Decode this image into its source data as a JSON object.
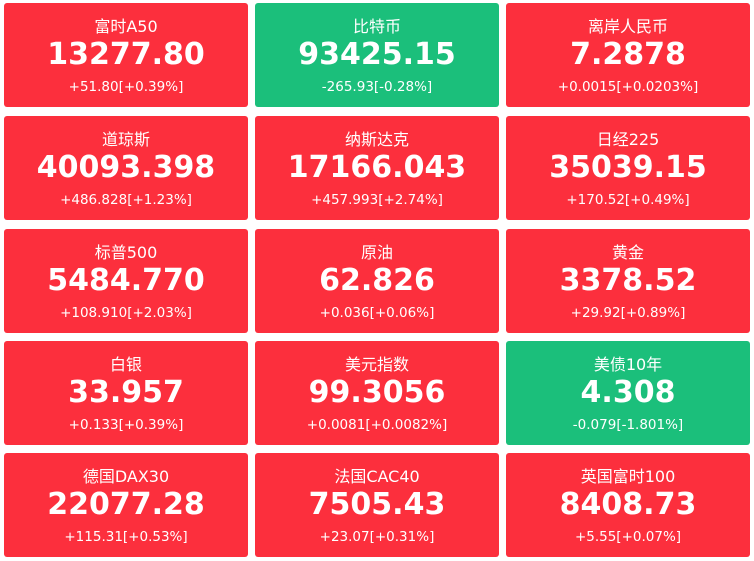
{
  "tiles": [
    {
      "name": "富时A50",
      "value": "13277.80",
      "change": "+51.80[+0.39%]",
      "color": "#fc2f3d"
    },
    {
      "name": "比特币",
      "value": "93425.15",
      "change": "-265.93[-0.28%]",
      "color": "#1bbf7b"
    },
    {
      "name": "离岸人民币",
      "value": "7.2878",
      "change": "+0.0015[+0.0203%]",
      "color": "#fc2f3d"
    },
    {
      "name": "道琼斯",
      "value": "40093.398",
      "change": "+486.828[+1.23%]",
      "color": "#fc2f3d"
    },
    {
      "name": "纳斯达克",
      "value": "17166.043",
      "change": "+457.993[+2.74%]",
      "color": "#fc2f3d"
    },
    {
      "name": "日经225",
      "value": "35039.15",
      "change": "+170.52[+0.49%]",
      "color": "#fc2f3d"
    },
    {
      "name": "标普500",
      "value": "5484.770",
      "change": "+108.910[+2.03%]",
      "color": "#fc2f3d"
    },
    {
      "name": "原油",
      "value": "62.826",
      "change": "+0.036[+0.06%]",
      "color": "#fc2f3d"
    },
    {
      "name": "黄金",
      "value": "3378.52",
      "change": "+29.92[+0.89%]",
      "color": "#fc2f3d"
    },
    {
      "name": "白银",
      "value": "33.957",
      "change": "+0.133[+0.39%]",
      "color": "#fc2f3d"
    },
    {
      "name": "美元指数",
      "value": "99.3056",
      "change": "+0.0081[+0.0082%]",
      "color": "#fc2f3d"
    },
    {
      "name": "美债10年",
      "value": "4.308",
      "change": "-0.079[-1.801%]",
      "color": "#1bbf7b"
    },
    {
      "name": "德国DAX30",
      "value": "22077.28",
      "change": "+115.31[+0.53%]",
      "color": "#fc2f3d"
    },
    {
      "name": "法国CAC40",
      "value": "7505.43",
      "change": "+23.07[+0.31%]",
      "color": "#fc2f3d"
    },
    {
      "name": "英国富时100",
      "value": "8408.73",
      "change": "+5.55[+0.07%]",
      "color": "#fc2f3d"
    }
  ]
}
